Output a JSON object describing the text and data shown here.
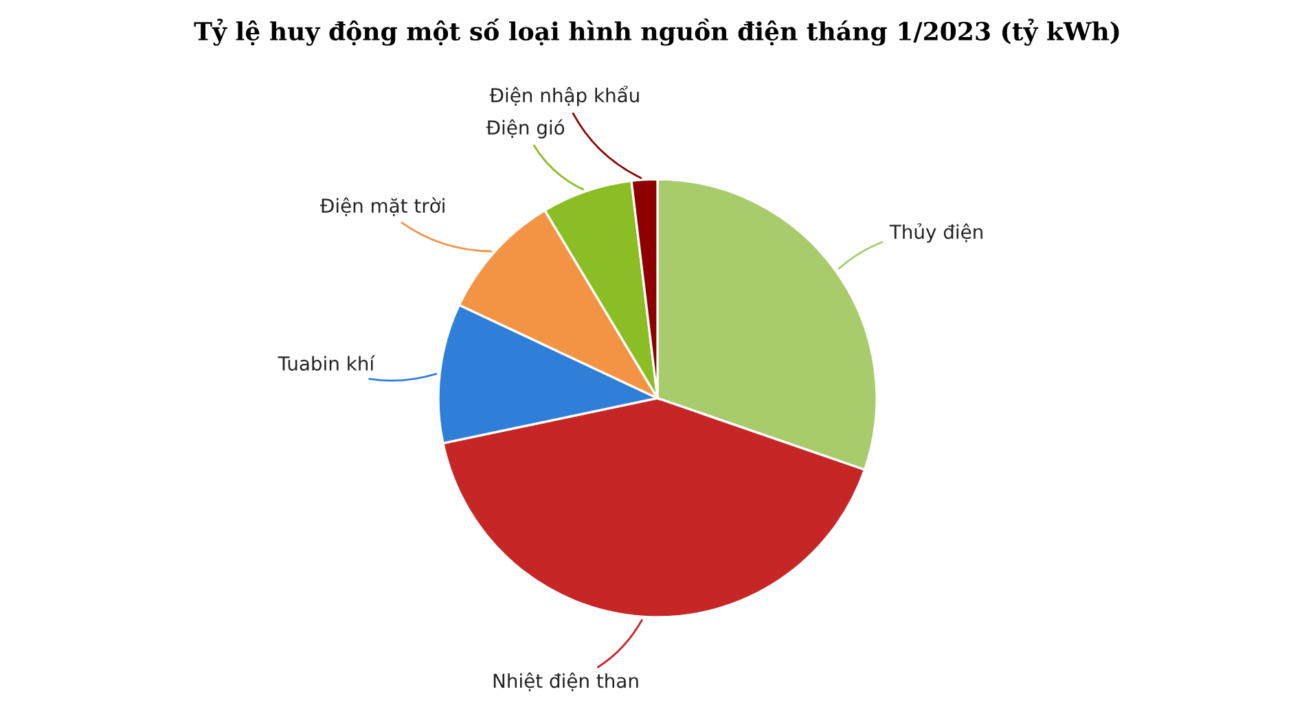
{
  "chart_data": {
    "type": "pie",
    "title": "Tỷ lệ huy động một số loại hình nguồn điện tháng 1/2023 (tỷ kWh)",
    "categories": [
      "Thủy điện",
      "Nhiệt điện than",
      "Tuabin khí",
      "Điện mặt trời",
      "Điện gió",
      "Điện nhập khẩu"
    ],
    "values": [
      30.3,
      41.4,
      10.3,
      9.4,
      6.7,
      1.9
    ],
    "colors": [
      "#a8cb6c",
      "#c62626",
      "#2f7fd9",
      "#f39344",
      "#8bbd24",
      "#8e0000"
    ],
    "legend": false
  }
}
